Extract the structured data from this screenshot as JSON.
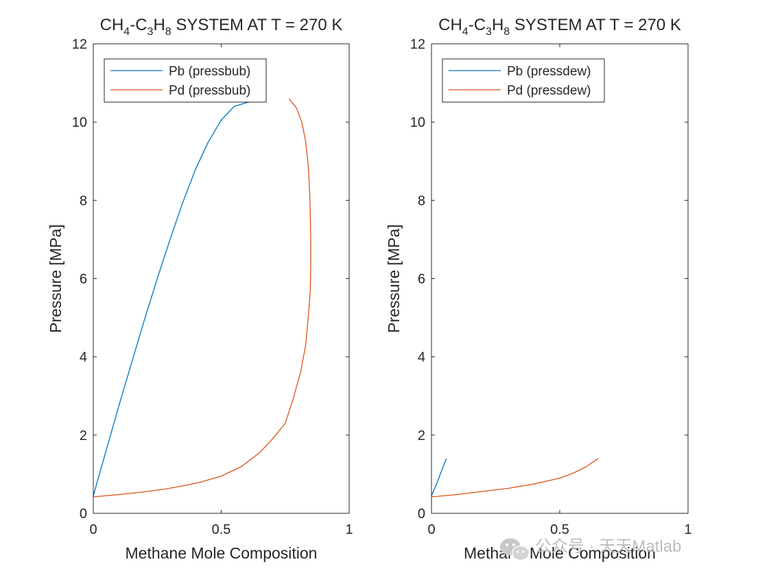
{
  "chart_data": [
    {
      "type": "line",
      "title": {
        "parts": [
          "CH",
          "4",
          "-C",
          "3",
          "H",
          "8",
          " SYSTEM AT T = 270 K"
        ]
      },
      "xlabel": "Methane Mole Composition",
      "ylabel": "Pressure [MPa]",
      "xlim": [
        0,
        1
      ],
      "ylim": [
        0,
        12
      ],
      "xticks": [
        0,
        0.5,
        1
      ],
      "xtick_labels": [
        "0",
        "0.5",
        "1"
      ],
      "yticks": [
        0,
        2,
        4,
        6,
        8,
        10,
        12
      ],
      "ytick_labels": [
        "0",
        "2",
        "4",
        "6",
        "8",
        "10",
        "12"
      ],
      "legend_location": "top-left",
      "series": [
        {
          "name": "Pb (pressbub)",
          "color": "#0072BD",
          "x": [
            0,
            0.05,
            0.1,
            0.15,
            0.2,
            0.25,
            0.3,
            0.35,
            0.4,
            0.45,
            0.5,
            0.55,
            0.6,
            0.64
          ],
          "y": [
            0.45,
            1.6,
            2.75,
            3.85,
            4.95,
            6.0,
            7.0,
            7.95,
            8.8,
            9.5,
            10.05,
            10.4,
            10.5,
            10.55
          ]
        },
        {
          "name": "Pd (pressbub)",
          "color": "#D95319",
          "x": [
            0.0,
            0.1,
            0.2,
            0.28,
            0.35,
            0.42,
            0.5,
            0.58,
            0.65,
            0.7,
            0.75,
            0.78,
            0.81,
            0.83,
            0.84,
            0.848,
            0.85,
            0.85,
            0.848,
            0.845,
            0.84,
            0.83,
            0.815,
            0.795,
            0.765
          ],
          "y": [
            0.42,
            0.48,
            0.55,
            0.62,
            0.7,
            0.8,
            0.95,
            1.2,
            1.55,
            1.9,
            2.3,
            2.9,
            3.6,
            4.3,
            5.0,
            5.7,
            6.3,
            7.0,
            7.7,
            8.3,
            8.9,
            9.5,
            10.0,
            10.35,
            10.6
          ]
        }
      ]
    },
    {
      "type": "line",
      "title": {
        "parts": [
          "CH",
          "4",
          "-C",
          "3",
          "H",
          "8",
          " SYSTEM AT T = 270 K"
        ]
      },
      "xlabel": "Methane Mole Composition",
      "ylabel": "Pressure [MPa]",
      "xlim": [
        0,
        1
      ],
      "ylim": [
        0,
        12
      ],
      "xticks": [
        0,
        0.5,
        1
      ],
      "xtick_labels": [
        "0",
        "0.5",
        "1"
      ],
      "yticks": [
        0,
        2,
        4,
        6,
        8,
        10,
        12
      ],
      "ytick_labels": [
        "0",
        "2",
        "4",
        "6",
        "8",
        "10",
        "12"
      ],
      "legend_location": "top-left",
      "series": [
        {
          "name": "Pb (pressdew)",
          "color": "#0072BD",
          "x": [
            0,
            0.02,
            0.04,
            0.058
          ],
          "y": [
            0.45,
            0.75,
            1.1,
            1.4
          ]
        },
        {
          "name": "Pd (pressdew)",
          "color": "#D95319",
          "x": [
            0,
            0.1,
            0.2,
            0.3,
            0.4,
            0.5,
            0.55,
            0.6,
            0.65
          ],
          "y": [
            0.42,
            0.48,
            0.56,
            0.64,
            0.75,
            0.9,
            1.02,
            1.18,
            1.4
          ]
        }
      ]
    }
  ],
  "watermark": {
    "icon": "wechat-icon",
    "text": "公众号 · 天天Matlab",
    "color": "#bdbdbd"
  }
}
